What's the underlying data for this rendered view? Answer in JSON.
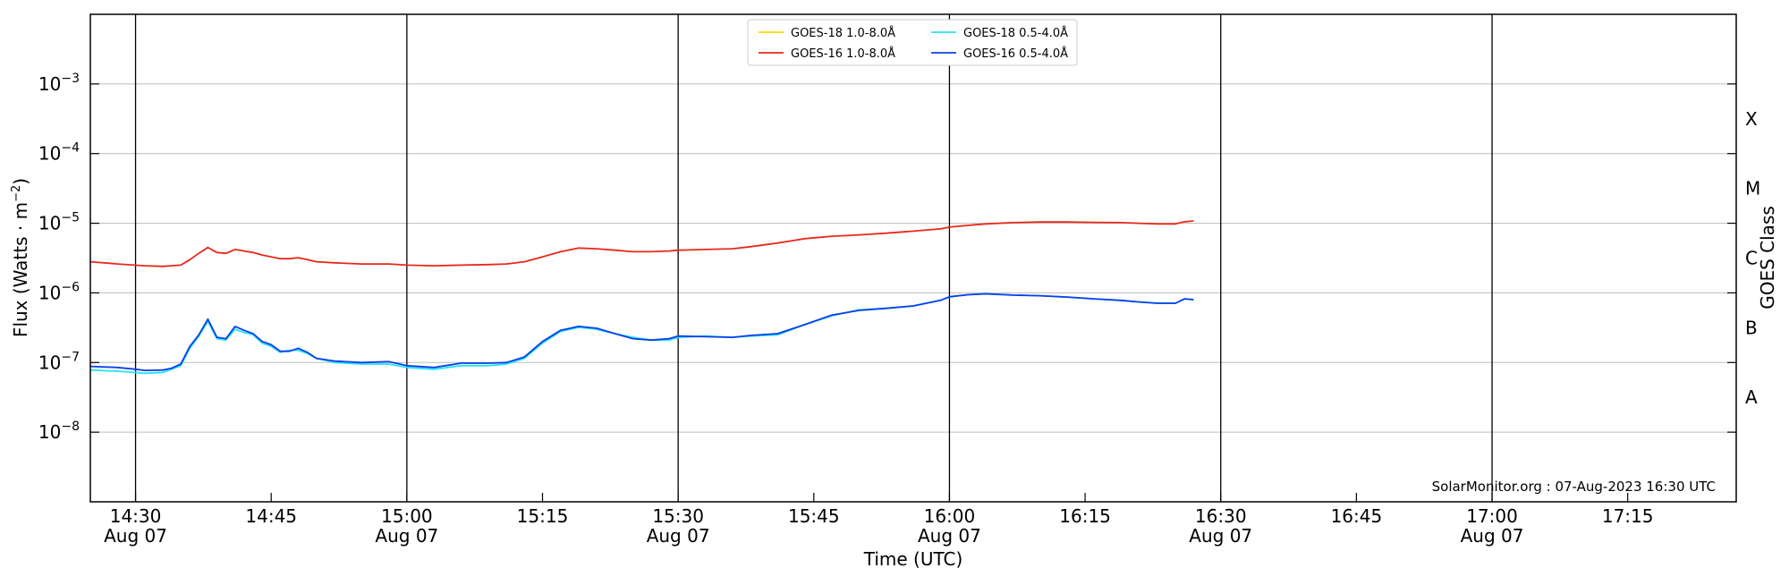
{
  "chart_data": {
    "type": "line",
    "xlabel": "Time (UTC)",
    "ylabel": "Flux (Watts · m",
    "ylabel_suffix": ")",
    "ylabel_exponent": "−2",
    "y2label": "GOES Class",
    "credit": "SolarMonitor.org : 07-Aug-2023 16:30 UTC",
    "y_scale": "log",
    "xlim": [
      "14:25",
      "17:27"
    ],
    "ylim": [
      1e-09,
      0.01
    ],
    "grid": "horizontal at each decade",
    "vlines": [
      "14:30",
      "15:00",
      "15:30",
      "16:00",
      "16:30",
      "17:00"
    ],
    "legend_position": "top-center",
    "x_ticks": [
      {
        "time": "14:30",
        "label": "14:30",
        "sublabel": "Aug 07"
      },
      {
        "time": "14:45",
        "label": "14:45",
        "sublabel": ""
      },
      {
        "time": "15:00",
        "label": "15:00",
        "sublabel": "Aug 07"
      },
      {
        "time": "15:15",
        "label": "15:15",
        "sublabel": ""
      },
      {
        "time": "15:30",
        "label": "15:30",
        "sublabel": "Aug 07"
      },
      {
        "time": "15:45",
        "label": "15:45",
        "sublabel": ""
      },
      {
        "time": "16:00",
        "label": "16:00",
        "sublabel": "Aug 07"
      },
      {
        "time": "16:15",
        "label": "16:15",
        "sublabel": ""
      },
      {
        "time": "16:30",
        "label": "16:30",
        "sublabel": "Aug 07"
      },
      {
        "time": "16:45",
        "label": "16:45",
        "sublabel": ""
      },
      {
        "time": "17:00",
        "label": "17:00",
        "sublabel": "Aug 07"
      },
      {
        "time": "17:15",
        "label": "17:15",
        "sublabel": ""
      }
    ],
    "y_ticks": [
      {
        "exp": -8,
        "base": "10",
        "sup": "−8"
      },
      {
        "exp": -7,
        "base": "10",
        "sup": "−7"
      },
      {
        "exp": -6,
        "base": "10",
        "sup": "−6"
      },
      {
        "exp": -5,
        "base": "10",
        "sup": "−5"
      },
      {
        "exp": -4,
        "base": "10",
        "sup": "−4"
      },
      {
        "exp": -3,
        "base": "10",
        "sup": "−3"
      }
    ],
    "goes_classes": [
      {
        "label": "A",
        "exp": -7.5
      },
      {
        "label": "B",
        "exp": -6.5
      },
      {
        "label": "C",
        "exp": -5.5
      },
      {
        "label": "M",
        "exp": -4.5
      },
      {
        "label": "X",
        "exp": -3.5
      }
    ],
    "series": [
      {
        "name": "GOES-18 1.0-8.0Å",
        "color": "#ffd700",
        "x": [],
        "values": []
      },
      {
        "name": "GOES-16 1.0-8.0Å",
        "color": "#e8281a",
        "x": [
          "14:25",
          "14:28",
          "14:31",
          "14:33",
          "14:35",
          "14:36",
          "14:37",
          "14:38",
          "14:39",
          "14:40",
          "14:41",
          "14:42",
          "14:43",
          "14:44",
          "14:45",
          "14:46",
          "14:47",
          "14:48",
          "14:49",
          "14:50",
          "14:52",
          "14:55",
          "14:58",
          "15:00",
          "15:03",
          "15:06",
          "15:09",
          "15:11",
          "15:13",
          "15:15",
          "15:17",
          "15:19",
          "15:21",
          "15:23",
          "15:25",
          "15:27",
          "15:29",
          "15:30",
          "15:33",
          "15:36",
          "15:38",
          "15:41",
          "15:44",
          "15:47",
          "15:50",
          "15:53",
          "15:56",
          "15:59",
          "16:00",
          "16:02",
          "16:04",
          "16:07",
          "16:10",
          "16:13",
          "16:16",
          "16:19",
          "16:21",
          "16:23",
          "16:25",
          "16:26",
          "16:27"
        ],
        "values": [
          2.8e-06,
          2.6e-06,
          2.45e-06,
          2.4e-06,
          2.5e-06,
          3e-06,
          3.7e-06,
          4.5e-06,
          3.8e-06,
          3.7e-06,
          4.2e-06,
          4e-06,
          3.8e-06,
          3.5e-06,
          3.3e-06,
          3.1e-06,
          3.1e-06,
          3.2e-06,
          3e-06,
          2.8e-06,
          2.7e-06,
          2.6e-06,
          2.6e-06,
          2.5e-06,
          2.45e-06,
          2.5e-06,
          2.55e-06,
          2.6e-06,
          2.8e-06,
          3.3e-06,
          3.9e-06,
          4.4e-06,
          4.3e-06,
          4.1e-06,
          3.9e-06,
          3.9e-06,
          4e-06,
          4.1e-06,
          4.2e-06,
          4.3e-06,
          4.6e-06,
          5.2e-06,
          6e-06,
          6.5e-06,
          6.8e-06,
          7.2e-06,
          7.7e-06,
          8.3e-06,
          8.8e-06,
          9.3e-06,
          9.8e-06,
          1.02e-05,
          1.04e-05,
          1.04e-05,
          1.03e-05,
          1.02e-05,
          1e-05,
          9.8e-06,
          9.8e-06,
          1.05e-05,
          1.08e-05
        ]
      },
      {
        "name": "GOES-18 0.5-4.0Å",
        "color": "#22e4f2",
        "x": [
          "14:25",
          "14:28",
          "14:30",
          "14:31",
          "14:33",
          "14:34",
          "14:35",
          "14:36",
          "14:37",
          "14:38",
          "14:39",
          "14:40",
          "14:41",
          "14:42",
          "14:43",
          "14:44",
          "14:45",
          "14:46",
          "14:47",
          "14:48",
          "14:49",
          "14:50",
          "14:52",
          "14:55",
          "14:58",
          "15:00",
          "15:03",
          "15:06",
          "15:09",
          "15:11",
          "15:13",
          "15:15",
          "15:17",
          "15:19",
          "15:21",
          "15:23",
          "15:25",
          "15:27",
          "15:29",
          "15:30",
          "15:33",
          "15:36",
          "15:38",
          "15:41",
          "15:44",
          "15:47",
          "15:50",
          "15:53",
          "15:56",
          "15:59",
          "16:00",
          "16:02",
          "16:04",
          "16:07",
          "16:10",
          "16:13",
          "16:16",
          "16:19",
          "16:21",
          "16:23",
          "16:25",
          "16:26",
          "16:27"
        ],
        "values": [
          7.8e-08,
          7.5e-08,
          7.2e-08,
          7e-08,
          7.2e-08,
          8e-08,
          9e-08,
          1.6e-07,
          2.4e-07,
          3.9e-07,
          2.2e-07,
          2.1e-07,
          3e-07,
          2.7e-07,
          2.5e-07,
          1.9e-07,
          1.7e-07,
          1.4e-07,
          1.5e-07,
          1.5e-07,
          1.35e-07,
          1.15e-07,
          1e-07,
          9.5e-08,
          9.5e-08,
          8.5e-08,
          8e-08,
          9e-08,
          9e-08,
          9.5e-08,
          1.15e-07,
          1.9e-07,
          2.8e-07,
          3.2e-07,
          3e-07,
          2.6e-07,
          2.3e-07,
          2.1e-07,
          2.1e-07,
          2.3e-07,
          2.4e-07,
          2.3e-07,
          2.4e-07,
          2.5e-07,
          3.5e-07,
          4.7e-07,
          5.7e-07,
          6e-07,
          6.5e-07,
          7.8e-07,
          8.8e-07,
          9.4e-07,
          9.7e-07,
          9.3e-07,
          9.1e-07,
          8.7e-07,
          8.2e-07,
          7.8e-07,
          7.4e-07,
          7.1e-07,
          7.1e-07,
          8.2e-07,
          8e-07
        ]
      },
      {
        "name": "GOES-16 0.5-4.0Å",
        "color": "#0a3fe8",
        "x": [
          "14:25",
          "14:28",
          "14:30",
          "14:31",
          "14:33",
          "14:34",
          "14:35",
          "14:36",
          "14:37",
          "14:38",
          "14:39",
          "14:40",
          "14:41",
          "14:42",
          "14:43",
          "14:44",
          "14:45",
          "14:46",
          "14:47",
          "14:48",
          "14:49",
          "14:50",
          "14:52",
          "14:55",
          "14:58",
          "15:00",
          "15:03",
          "15:06",
          "15:09",
          "15:11",
          "15:13",
          "15:15",
          "15:17",
          "15:19",
          "15:21",
          "15:23",
          "15:25",
          "15:27",
          "15:29",
          "15:30",
          "15:33",
          "15:36",
          "15:38",
          "15:41",
          "15:44",
          "15:47",
          "15:50",
          "15:53",
          "15:56",
          "15:59",
          "16:00",
          "16:02",
          "16:04",
          "16:07",
          "16:10",
          "16:13",
          "16:16",
          "16:19",
          "16:21",
          "16:23",
          "16:25",
          "16:26",
          "16:27"
        ],
        "values": [
          8.8e-08,
          8.5e-08,
          8e-08,
          7.7e-08,
          7.8e-08,
          8.3e-08,
          9.5e-08,
          1.7e-07,
          2.5e-07,
          4.2e-07,
          2.3e-07,
          2.2e-07,
          3.3e-07,
          2.9e-07,
          2.6e-07,
          2e-07,
          1.8e-07,
          1.45e-07,
          1.45e-07,
          1.6e-07,
          1.4e-07,
          1.15e-07,
          1.05e-07,
          1e-07,
          1.03e-07,
          9e-08,
          8.5e-08,
          9.8e-08,
          9.8e-08,
          1e-07,
          1.2e-07,
          2e-07,
          2.9e-07,
          3.3e-07,
          3.1e-07,
          2.6e-07,
          2.2e-07,
          2.1e-07,
          2.2e-07,
          2.4e-07,
          2.35e-07,
          2.3e-07,
          2.45e-07,
          2.6e-07,
          3.5e-07,
          4.8e-07,
          5.6e-07,
          6e-07,
          6.5e-07,
          7.8e-07,
          8.8e-07,
          9.4e-07,
          9.7e-07,
          9.3e-07,
          9.1e-07,
          8.7e-07,
          8.2e-07,
          7.8e-07,
          7.4e-07,
          7.1e-07,
          7.1e-07,
          8.2e-07,
          8e-07
        ]
      }
    ]
  }
}
